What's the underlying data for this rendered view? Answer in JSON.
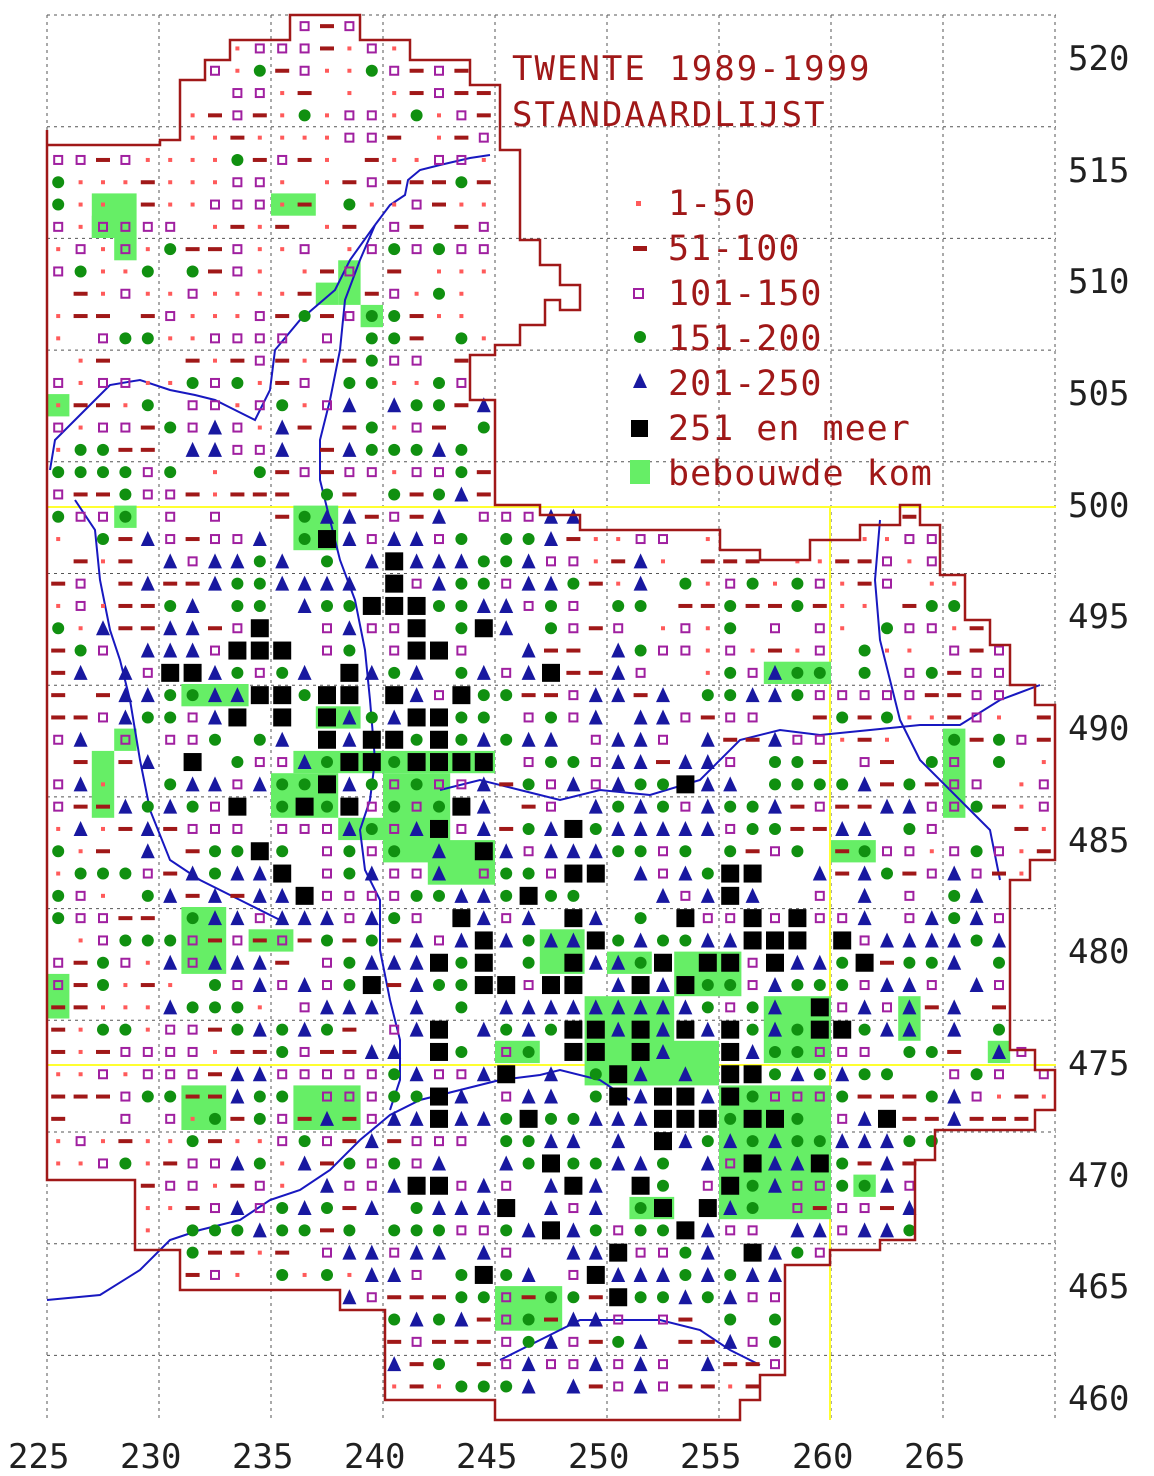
{
  "title": {
    "line1": "TWENTE 1989-1999",
    "line2": "STANDAARDLIJST"
  },
  "legend": [
    {
      "symbol": "dot",
      "label": "1-50",
      "color": "#ff5a5a"
    },
    {
      "symbol": "dash",
      "label": "51-100",
      "color": "#a01818"
    },
    {
      "symbol": "open-square",
      "label": "101-150",
      "color": "#a020a0"
    },
    {
      "symbol": "circle",
      "label": "151-200",
      "color": "#109010"
    },
    {
      "symbol": "triangle",
      "label": "201-250",
      "color": "#1818a0"
    },
    {
      "symbol": "filled-square",
      "label": "251 en meer",
      "color": "#000000"
    },
    {
      "symbol": "green-block",
      "label": "bebouwde kom",
      "color": "#66ee66"
    }
  ],
  "x_axis_labels": [
    "225",
    "230",
    "235",
    "240",
    "245",
    "250",
    "255",
    "260",
    "265"
  ],
  "y_axis_labels": [
    "520",
    "515",
    "510",
    "505",
    "500",
    "495",
    "490",
    "485",
    "480",
    "475",
    "470",
    "465",
    "460"
  ],
  "colors": {
    "border": "#a01818",
    "grid": "#555555",
    "river": "#1818c0",
    "highlight_line": "#ffff30",
    "text": "#a01818"
  }
}
